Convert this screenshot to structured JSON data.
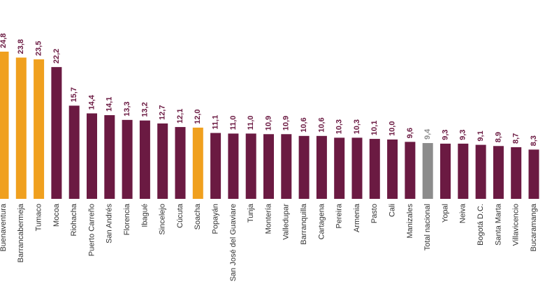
{
  "chart_data": {
    "type": "bar",
    "categories": [
      "Buenaventura",
      "Barrancabermeja",
      "Tumaco",
      "Mocoa",
      "Riohacha",
      "Puerto Carreño",
      "San Andrés",
      "Florencia",
      "Ibagué",
      "Sincelejo",
      "Cúcuta",
      "Soacha",
      "Popayán",
      "San José del Guaviare",
      "Tunja",
      "Montería",
      "Valledupar",
      "Barranquilla",
      "Cartagena",
      "Pereira",
      "Armenia",
      "Pasto",
      "Cali",
      "Manizales",
      "Total nacional",
      "Yopal",
      "Neiva",
      "Bogotá D.C.",
      "Santa Marta",
      "Villavicencio",
      "Bucaramanga"
    ],
    "values": [
      24.8,
      23.8,
      23.5,
      22.2,
      15.7,
      14.4,
      14.1,
      13.3,
      13.2,
      12.7,
      12.1,
      12.0,
      11.1,
      11.0,
      11.0,
      10.9,
      10.9,
      10.6,
      10.6,
      10.3,
      10.3,
      10.1,
      10.0,
      9.6,
      9.4,
      9.3,
      9.3,
      9.1,
      8.9,
      8.7,
      8.3
    ],
    "value_labels": [
      "24,8",
      "23,8",
      "23,5",
      "22,2",
      "15,7",
      "14,4",
      "14,1",
      "13,3",
      "13,2",
      "12,7",
      "12,1",
      "12,0",
      "11,1",
      "11,0",
      "11,0",
      "10,9",
      "10,9",
      "10,6",
      "10,6",
      "10,3",
      "10,3",
      "10,1",
      "10,0",
      "9,6",
      "9,4",
      "9,3",
      "9,3",
      "9,1",
      "8,9",
      "8,7",
      "8,3"
    ],
    "colors": [
      "#f0a01e",
      "#f0a01e",
      "#f0a01e",
      "#6b1a42",
      "#6b1a42",
      "#6b1a42",
      "#6b1a42",
      "#6b1a42",
      "#6b1a42",
      "#6b1a42",
      "#6b1a42",
      "#f0a01e",
      "#6b1a42",
      "#6b1a42",
      "#6b1a42",
      "#6b1a42",
      "#6b1a42",
      "#6b1a42",
      "#6b1a42",
      "#6b1a42",
      "#6b1a42",
      "#6b1a42",
      "#6b1a42",
      "#6b1a42",
      "#8c8c8c",
      "#6b1a42",
      "#6b1a42",
      "#6b1a42",
      "#6b1a42",
      "#6b1a42",
      "#6b1a42"
    ],
    "ylim": [
      0,
      33.5
    ]
  }
}
